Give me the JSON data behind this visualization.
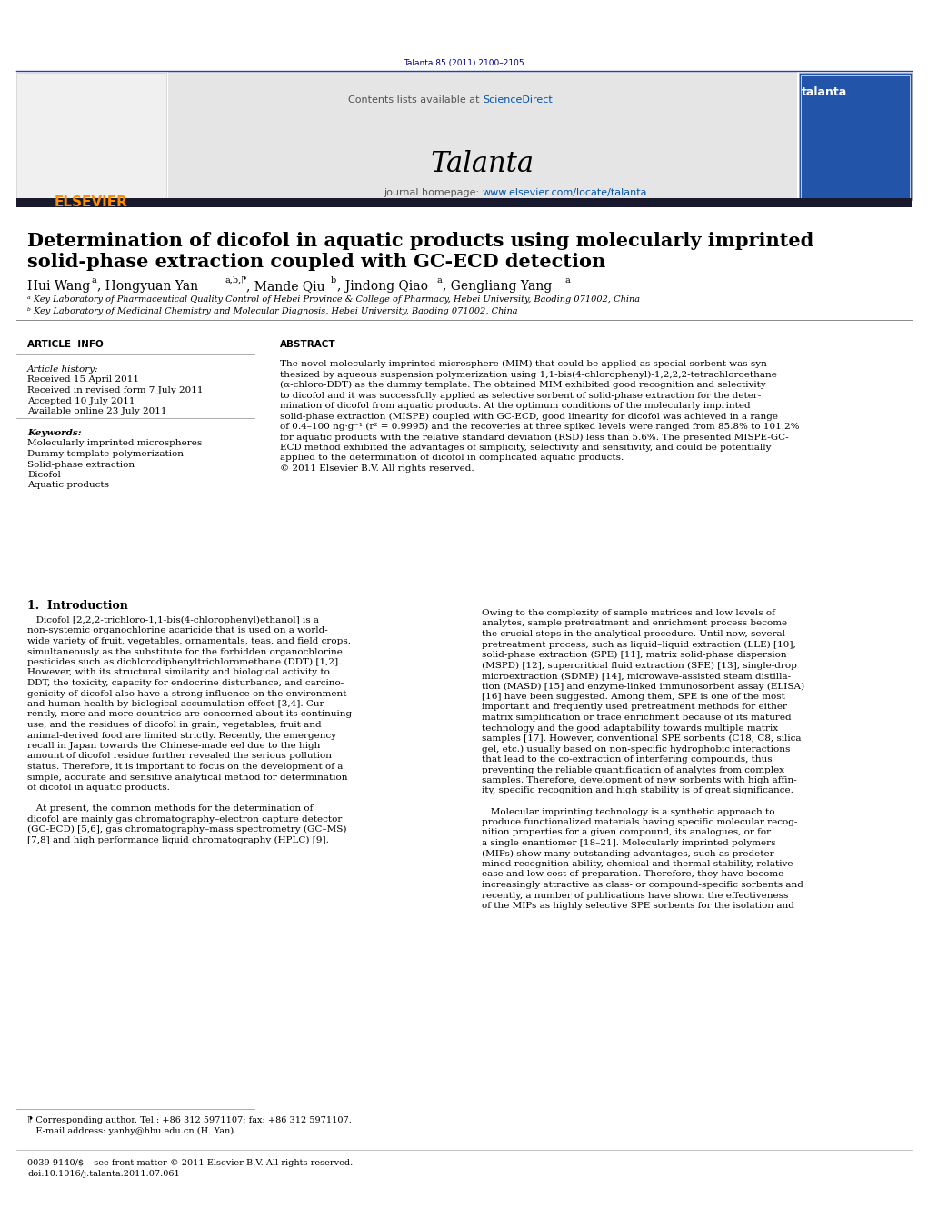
{
  "doi_text": "Talanta 85 (2011) 2100–2105",
  "doi_color": "#00008B",
  "header_bg": "#e5e5e5",
  "header_text_color": "#555555",
  "sciencedirect_color": "#0055aa",
  "journal_name": "Talanta",
  "elsevier_color": "#FF8C00",
  "divider_color": "#1a1a2e",
  "article_title_line1": "Determination of dicofol in aquatic products using molecularly imprinted",
  "article_title_line2": "solid-phase extraction coupled with GC-ECD detection",
  "affil_a": "ᵃ Key Laboratory of Pharmaceutical Quality Control of Hebei Province & College of Pharmacy, Hebei University, Baoding 071002, China",
  "affil_b": "ᵇ Key Laboratory of Medicinal Chemistry and Molecular Diagnosis, Hebei University, Baoding 071002, China",
  "article_info_label": "ARTICLE  INFO",
  "abstract_label": "ABSTRACT",
  "article_history_label": "Article history:",
  "received_1": "Received 15 April 2011",
  "received_rev": "Received in revised form 7 July 2011",
  "accepted": "Accepted 10 July 2011",
  "available": "Available online 23 July 2011",
  "keywords_label": "Keywords:",
  "keywords": [
    "Molecularly imprinted microspheres",
    "Dummy template polymerization",
    "Solid-phase extraction",
    "Dicofol",
    "Aquatic products"
  ],
  "abstract_lines": [
    "The novel molecularly imprinted microsphere (MIM) that could be applied as special sorbent was syn-",
    "thesized by aqueous suspension polymerization using 1,1-bis(4-chlorophenyl)-1,2,2,2-tetrachloroethane",
    "(α-chloro-DDT) as the dummy template. The obtained MIM exhibited good recognition and selectivity",
    "to dicofol and it was successfully applied as selective sorbent of solid-phase extraction for the deter-",
    "mination of dicofol from aquatic products. At the optimum conditions of the molecularly imprinted",
    "solid-phase extraction (MISPE) coupled with GC-ECD, good linearity for dicofol was achieved in a range",
    "of 0.4–100 ng·g⁻¹ (r² = 0.9995) and the recoveries at three spiked levels were ranged from 85.8% to 101.2%",
    "for aquatic products with the relative standard deviation (RSD) less than 5.6%. The presented MISPE-GC-",
    "ECD method exhibited the advantages of simplicity, selectivity and sensitivity, and could be potentially",
    "applied to the determination of dicofol in complicated aquatic products.",
    "© 2011 Elsevier B.V. All rights reserved."
  ],
  "intro_heading": "1.  Introduction",
  "col1_lines": [
    "   Dicofol [2,2,2-trichloro-1,1-bis(4-chlorophenyl)ethanol] is a",
    "non-systemic organochlorine acaricide that is used on a world-",
    "wide variety of fruit, vegetables, ornamentals, teas, and field crops,",
    "simultaneously as the substitute for the forbidden organochlorine",
    "pesticides such as dichlorodiphenyltrichloromethane (DDT) [1,2].",
    "However, with its structural similarity and biological activity to",
    "DDT, the toxicity, capacity for endocrine disturbance, and carcino-",
    "genicity of dicofol also have a strong influence on the environment",
    "and human health by biological accumulation effect [3,4]. Cur-",
    "rently, more and more countries are concerned about its continuing",
    "use, and the residues of dicofol in grain, vegetables, fruit and",
    "animal-derived food are limited strictly. Recently, the emergency",
    "recall in Japan towards the Chinese-made eel due to the high",
    "amount of dicofol residue further revealed the serious pollution",
    "status. Therefore, it is important to focus on the development of a",
    "simple, accurate and sensitive analytical method for determination",
    "of dicofol in aquatic products.",
    "",
    "   At present, the common methods for the determination of",
    "dicofol are mainly gas chromatography–electron capture detector",
    "(GC-ECD) [5,6], gas chromatography–mass spectrometry (GC–MS)",
    "[7,8] and high performance liquid chromatography (HPLC) [9]."
  ],
  "col2_lines": [
    "Owing to the complexity of sample matrices and low levels of",
    "analytes, sample pretreatment and enrichment process become",
    "the crucial steps in the analytical procedure. Until now, several",
    "pretreatment process, such as liquid–liquid extraction (LLE) [10],",
    "solid-phase extraction (SPE) [11], matrix solid-phase dispersion",
    "(MSPD) [12], supercritical fluid extraction (SFE) [13], single-drop",
    "microextraction (SDME) [14], microwave-assisted steam distilla-",
    "tion (MASD) [15] and enzyme-linked immunosorbent assay (ELISA)",
    "[16] have been suggested. Among them, SPE is one of the most",
    "important and frequently used pretreatment methods for either",
    "matrix simplification or trace enrichment because of its matured",
    "technology and the good adaptability towards multiple matrix",
    "samples [17]. However, conventional SPE sorbents (C18, C8, silica",
    "gel, etc.) usually based on non-specific hydrophobic interactions",
    "that lead to the co-extraction of interfering compounds, thus",
    "preventing the reliable quantification of analytes from complex",
    "samples. Therefore, development of new sorbents with high affin-",
    "ity, specific recognition and high stability is of great significance.",
    "",
    "   Molecular imprinting technology is a synthetic approach to",
    "produce functionalized materials having specific molecular recog-",
    "nition properties for a given compound, its analogues, or for",
    "a single enantiomer [18–21]. Molecularly imprinted polymers",
    "(MIPs) show many outstanding advantages, such as predeter-",
    "mined recognition ability, chemical and thermal stability, relative",
    "ease and low cost of preparation. Therefore, they have become",
    "increasingly attractive as class- or compound-specific sorbents and",
    "recently, a number of publications have shown the effectiveness",
    "of the MIPs as highly selective SPE sorbents for the isolation and"
  ],
  "footnote_corr": "⁋ Corresponding author. Tel.: +86 312 5971107; fax: +86 312 5971107.",
  "footnote_email": "   E-mail address: yanhy@hbu.edu.cn (H. Yan).",
  "footnote_issn": "0039-9140/$ – see front matter © 2011 Elsevier B.V. All rights reserved.",
  "footnote_doi": "doi:10.1016/j.talanta.2011.07.061",
  "bg_color": "#ffffff",
  "text_color": "#000000",
  "link_color": "#0055aa"
}
